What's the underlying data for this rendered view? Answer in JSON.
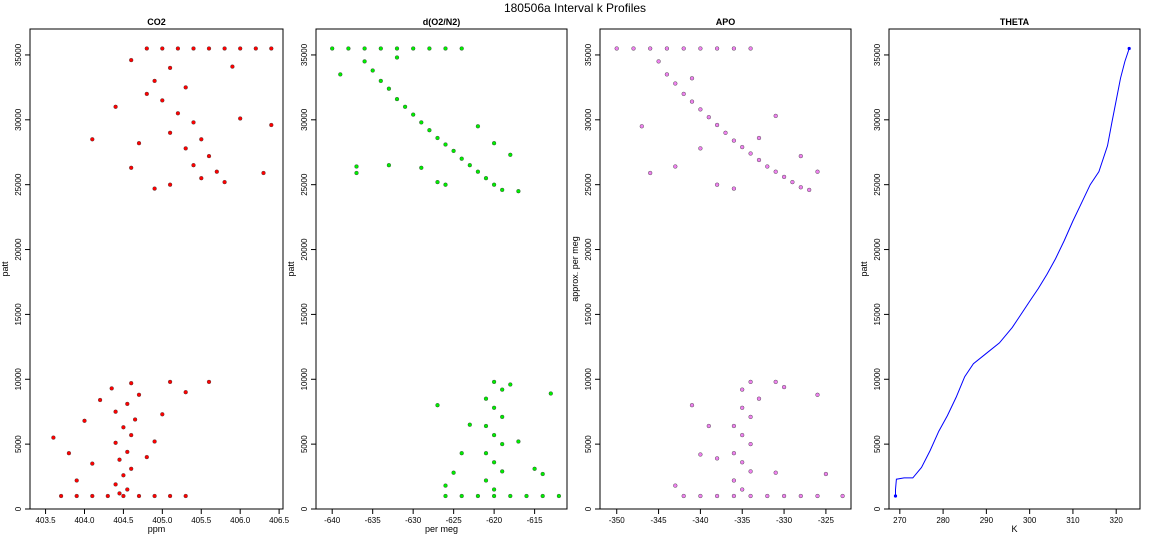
{
  "page_title": "180506a   Interval k Profiles",
  "chart_data": [
    {
      "type": "scatter",
      "title": "CO2",
      "xlabel": "ppm",
      "ylabel": "patt",
      "xlim": [
        403.3,
        406.55
      ],
      "ylim": [
        0,
        37000
      ],
      "xticks": [
        403.5,
        404.0,
        404.5,
        405.0,
        405.5,
        406.0,
        406.5
      ],
      "yticks": [
        0,
        5000,
        10000,
        15000,
        20000,
        25000,
        30000,
        35000
      ],
      "color": "#ff0000",
      "series": [
        {
          "points": [
            [
              403.7,
              1000
            ],
            [
              403.9,
              1000
            ],
            [
              404.1,
              1000
            ],
            [
              404.3,
              1000
            ],
            [
              404.5,
              1000
            ],
            [
              404.7,
              1000
            ],
            [
              404.9,
              1000
            ],
            [
              405.1,
              1000
            ],
            [
              405.3,
              1000
            ],
            [
              404.45,
              1200
            ],
            [
              404.55,
              1500
            ],
            [
              404.4,
              1900
            ],
            [
              404.5,
              2600
            ],
            [
              404.6,
              3100
            ],
            [
              404.45,
              3800
            ],
            [
              404.55,
              4400
            ],
            [
              404.4,
              5100
            ],
            [
              404.6,
              5700
            ],
            [
              404.5,
              6300
            ],
            [
              404.65,
              6900
            ],
            [
              404.4,
              7500
            ],
            [
              404.55,
              8100
            ],
            [
              404.7,
              8800
            ],
            [
              404.35,
              9300
            ],
            [
              404.6,
              9700
            ],
            [
              403.6,
              5500
            ],
            [
              403.8,
              4300
            ],
            [
              404.0,
              6800
            ],
            [
              404.2,
              8400
            ],
            [
              404.8,
              4000
            ],
            [
              405.0,
              7300
            ],
            [
              405.3,
              9000
            ],
            [
              405.1,
              9800
            ],
            [
              404.9,
              5200
            ],
            [
              404.1,
              3500
            ],
            [
              405.6,
              9800
            ],
            [
              403.9,
              2200
            ],
            [
              404.8,
              35500
            ],
            [
              405.0,
              35500
            ],
            [
              405.2,
              35500
            ],
            [
              405.4,
              35500
            ],
            [
              405.6,
              35500
            ],
            [
              405.8,
              35500
            ],
            [
              406.0,
              35500
            ],
            [
              406.2,
              35500
            ],
            [
              406.4,
              35500
            ],
            [
              405.1,
              34000
            ],
            [
              404.9,
              33000
            ],
            [
              405.3,
              32500
            ],
            [
              405.0,
              31500
            ],
            [
              405.2,
              30500
            ],
            [
              405.4,
              29800
            ],
            [
              405.1,
              29000
            ],
            [
              405.5,
              28500
            ],
            [
              405.3,
              27800
            ],
            [
              405.6,
              27200
            ],
            [
              405.4,
              26500
            ],
            [
              405.7,
              26000
            ],
            [
              405.5,
              25500
            ],
            [
              405.1,
              25000
            ],
            [
              404.9,
              24700
            ],
            [
              405.8,
              25200
            ],
            [
              404.6,
              26300
            ],
            [
              404.7,
              28200
            ],
            [
              404.4,
              31000
            ],
            [
              404.6,
              34600
            ],
            [
              406.0,
              30100
            ],
            [
              406.3,
              25900
            ],
            [
              406.4,
              29600
            ],
            [
              405.9,
              34100
            ],
            [
              404.1,
              28500
            ],
            [
              404.8,
              32000
            ]
          ]
        }
      ]
    },
    {
      "type": "scatter",
      "title": "d(O2/N2)",
      "xlabel": "per meg",
      "ylabel": "patt",
      "xlim": [
        -642,
        -611
      ],
      "ylim": [
        0,
        37000
      ],
      "xticks": [
        -640,
        -635,
        -630,
        -625,
        -620,
        -615
      ],
      "yticks": [
        0,
        5000,
        10000,
        15000,
        20000,
        25000,
        30000,
        35000
      ],
      "color": "#00ee00",
      "series": [
        {
          "points": [
            [
              -640,
              35500
            ],
            [
              -638,
              35500
            ],
            [
              -636,
              35500
            ],
            [
              -634,
              35500
            ],
            [
              -632,
              35500
            ],
            [
              -630,
              35500
            ],
            [
              -628,
              35500
            ],
            [
              -626,
              35500
            ],
            [
              -624,
              35500
            ],
            [
              -636,
              34500
            ],
            [
              -635,
              33800
            ],
            [
              -634,
              33000
            ],
            [
              -633,
              32400
            ],
            [
              -632,
              31600
            ],
            [
              -631,
              31000
            ],
            [
              -630,
              30400
            ],
            [
              -629,
              29800
            ],
            [
              -628,
              29200
            ],
            [
              -627,
              28600
            ],
            [
              -626,
              28100
            ],
            [
              -625,
              27600
            ],
            [
              -624,
              27000
            ],
            [
              -623,
              26500
            ],
            [
              -622,
              26000
            ],
            [
              -621,
              25500
            ],
            [
              -620,
              25000
            ],
            [
              -619,
              24600
            ],
            [
              -637,
              26400
            ],
            [
              -633,
              26500
            ],
            [
              -629,
              26300
            ],
            [
              -627,
              25200
            ],
            [
              -626,
              25000
            ],
            [
              -620,
              28200
            ],
            [
              -618,
              27300
            ],
            [
              -617,
              24500
            ],
            [
              -637,
              25900
            ],
            [
              -622,
              29500
            ],
            [
              -639,
              33500
            ],
            [
              -632,
              34800
            ],
            [
              -626,
              1000
            ],
            [
              -624,
              1000
            ],
            [
              -622,
              1000
            ],
            [
              -620,
              1000
            ],
            [
              -618,
              1000
            ],
            [
              -616,
              1000
            ],
            [
              -614,
              1000
            ],
            [
              -612,
              1000
            ],
            [
              -620,
              1500
            ],
            [
              -621,
              2200
            ],
            [
              -619,
              2900
            ],
            [
              -620,
              3600
            ],
            [
              -621,
              4300
            ],
            [
              -619,
              5000
            ],
            [
              -620,
              5700
            ],
            [
              -621,
              6400
            ],
            [
              -619,
              7100
            ],
            [
              -620,
              7800
            ],
            [
              -621,
              8500
            ],
            [
              -619,
              9200
            ],
            [
              -620,
              9800
            ],
            [
              -625,
              2800
            ],
            [
              -624,
              4300
            ],
            [
              -623,
              6500
            ],
            [
              -617,
              5200
            ],
            [
              -615,
              3100
            ],
            [
              -614,
              2700
            ],
            [
              -613,
              8900
            ],
            [
              -627,
              8000
            ],
            [
              -626,
              1800
            ],
            [
              -618,
              9600
            ]
          ]
        }
      ]
    },
    {
      "type": "scatter",
      "title": "APO",
      "xlabel": "",
      "ylabel": "approx. per meg",
      "xlim": [
        -352,
        -322
      ],
      "ylim": [
        0,
        37000
      ],
      "xticks": [
        -350,
        -345,
        -340,
        -335,
        -330,
        -325
      ],
      "yticks": [
        0,
        5000,
        10000,
        15000,
        20000,
        25000,
        30000,
        35000
      ],
      "color": "#ee82ee",
      "series": [
        {
          "points": [
            [
              -350,
              35500
            ],
            [
              -348,
              35500
            ],
            [
              -346,
              35500
            ],
            [
              -344,
              35500
            ],
            [
              -342,
              35500
            ],
            [
              -340,
              35500
            ],
            [
              -338,
              35500
            ],
            [
              -336,
              35500
            ],
            [
              -334,
              35500
            ],
            [
              -345,
              34500
            ],
            [
              -344,
              33500
            ],
            [
              -343,
              32800
            ],
            [
              -342,
              32000
            ],
            [
              -341,
              31400
            ],
            [
              -340,
              30800
            ],
            [
              -339,
              30200
            ],
            [
              -338,
              29600
            ],
            [
              -337,
              29000
            ],
            [
              -336,
              28400
            ],
            [
              -335,
              27900
            ],
            [
              -334,
              27400
            ],
            [
              -333,
              26900
            ],
            [
              -332,
              26400
            ],
            [
              -331,
              26000
            ],
            [
              -330,
              25600
            ],
            [
              -329,
              25200
            ],
            [
              -328,
              24800
            ],
            [
              -346,
              25900
            ],
            [
              -343,
              26400
            ],
            [
              -340,
              27800
            ],
            [
              -338,
              25000
            ],
            [
              -336,
              24700
            ],
            [
              -333,
              28600
            ],
            [
              -331,
              30300
            ],
            [
              -328,
              27200
            ],
            [
              -326,
              26000
            ],
            [
              -327,
              24600
            ],
            [
              -341,
              33200
            ],
            [
              -347,
              29500
            ],
            [
              -342,
              1000
            ],
            [
              -340,
              1000
            ],
            [
              -338,
              1000
            ],
            [
              -336,
              1000
            ],
            [
              -334,
              1000
            ],
            [
              -332,
              1000
            ],
            [
              -330,
              1000
            ],
            [
              -328,
              1000
            ],
            [
              -326,
              1000
            ],
            [
              -323,
              1000
            ],
            [
              -335,
              1500
            ],
            [
              -336,
              2200
            ],
            [
              -334,
              2900
            ],
            [
              -335,
              3600
            ],
            [
              -336,
              4300
            ],
            [
              -334,
              5000
            ],
            [
              -335,
              5700
            ],
            [
              -336,
              6400
            ],
            [
              -334,
              7100
            ],
            [
              -335,
              7800
            ],
            [
              -333,
              8500
            ],
            [
              -335,
              9200
            ],
            [
              -334,
              9800
            ],
            [
              -341,
              8000
            ],
            [
              -339,
              6400
            ],
            [
              -338,
              3900
            ],
            [
              -331,
              2800
            ],
            [
              -330,
              9400
            ],
            [
              -326,
              8800
            ],
            [
              -325,
              2700
            ],
            [
              -340,
              4200
            ],
            [
              -343,
              1800
            ],
            [
              -331,
              9800
            ]
          ]
        }
      ]
    },
    {
      "type": "line",
      "title": "THETA",
      "xlabel": "K",
      "ylabel": "patt",
      "xlim": [
        267.5,
        325.5
      ],
      "ylim": [
        0,
        37000
      ],
      "xticks": [
        270,
        280,
        290,
        300,
        310,
        320
      ],
      "yticks": [
        0,
        5000,
        10000,
        15000,
        20000,
        25000,
        30000,
        35000
      ],
      "color": "#0000ff",
      "series": [
        {
          "points": [
            [
              269,
              1000
            ],
            [
              269,
              1500
            ],
            [
              269.2,
              2300
            ],
            [
              271,
              2400
            ],
            [
              273,
              2400
            ],
            [
              275,
              3200
            ],
            [
              277,
              4500
            ],
            [
              279,
              6000
            ],
            [
              281,
              7200
            ],
            [
              283,
              8600
            ],
            [
              285,
              10200
            ],
            [
              287,
              11200
            ],
            [
              290,
              12000
            ],
            [
              293,
              12800
            ],
            [
              296,
              14000
            ],
            [
              298,
              15000
            ],
            [
              300,
              16000
            ],
            [
              302,
              17000
            ],
            [
              304,
              18100
            ],
            [
              306,
              19300
            ],
            [
              308,
              20700
            ],
            [
              310,
              22200
            ],
            [
              312,
              23600
            ],
            [
              314,
              25000
            ],
            [
              316,
              26000
            ],
            [
              318,
              28000
            ],
            [
              319,
              29800
            ],
            [
              320,
              31500
            ],
            [
              321,
              33200
            ],
            [
              322,
              34500
            ],
            [
              323,
              35500
            ]
          ]
        }
      ]
    }
  ]
}
